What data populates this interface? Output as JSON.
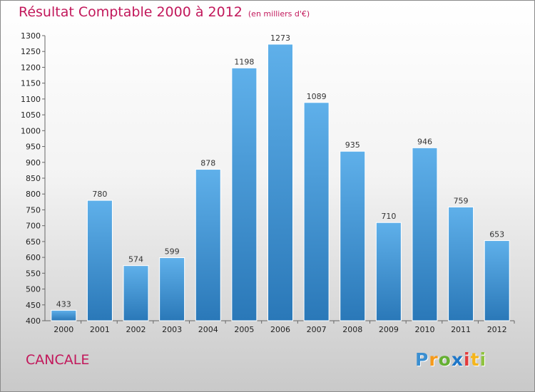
{
  "header": {
    "title": "Résultat Comptable 2000 à 2012",
    "unit": "(en milliers d'€)"
  },
  "footer": {
    "place": "CANCALE",
    "logo_letters": [
      "P",
      "r",
      "o",
      "x",
      "i",
      "t",
      "i"
    ],
    "logo_colors": [
      "#3b8fd1",
      "#f59a1b",
      "#66b033",
      "#1f77c8",
      "#e33b3b",
      "#f5b51b",
      "#8fc33f"
    ]
  },
  "colors": {
    "title": "#c2185b",
    "bar_top": "#5fb0ea",
    "bar_bottom": "#2a78b8"
  },
  "chart_data": {
    "type": "bar",
    "title": "Résultat Comptable 2000 à 2012",
    "subtitle": "(en milliers d'€)",
    "xlabel": "",
    "ylabel": "",
    "categories": [
      "2000",
      "2001",
      "2002",
      "2003",
      "2004",
      "2005",
      "2006",
      "2007",
      "2008",
      "2009",
      "2010",
      "2011",
      "2012"
    ],
    "values": [
      433,
      780,
      574,
      599,
      878,
      1198,
      1273,
      1089,
      935,
      710,
      946,
      759,
      653
    ],
    "ylim": [
      400,
      1300
    ],
    "yticks": [
      400,
      450,
      500,
      550,
      600,
      650,
      700,
      750,
      800,
      850,
      900,
      950,
      1000,
      1050,
      1100,
      1150,
      1200,
      1250,
      1300
    ],
    "grid": false,
    "data_labels": true
  }
}
